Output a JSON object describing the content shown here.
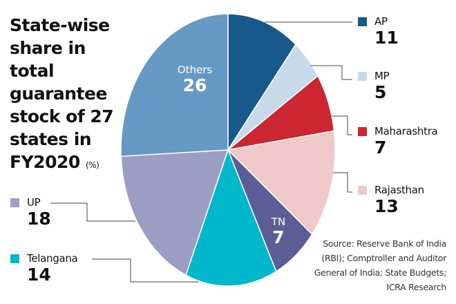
{
  "chart_data": {
    "type": "pie",
    "title": "State-wise share in total guarantee stock of 27 states in FY2020",
    "unit": "(%)",
    "slices": [
      {
        "label": "AP",
        "value": 11,
        "color": "#17598a"
      },
      {
        "label": "MP",
        "value": 5,
        "color": "#c8dae9"
      },
      {
        "label": "Maharashtra",
        "value": 7,
        "color": "#cc2630"
      },
      {
        "label": "Rajasthan",
        "value": 13,
        "color": "#f0c9c9"
      },
      {
        "label": "TN",
        "value": 7,
        "color": "#5b5e94"
      },
      {
        "label": "Telangana",
        "value": 14,
        "color": "#00b8cc"
      },
      {
        "label": "UP",
        "value": 18,
        "color": "#9c9dc3"
      },
      {
        "label": "Others",
        "value": 26,
        "color": "#6699c3"
      }
    ],
    "start_angle": "12 o'clock",
    "direction": "clockwise"
  },
  "source": "Source: Reserve Bank of India (RBI); Comptroller and Auditor General of India; State Budgets; ICRA Research"
}
